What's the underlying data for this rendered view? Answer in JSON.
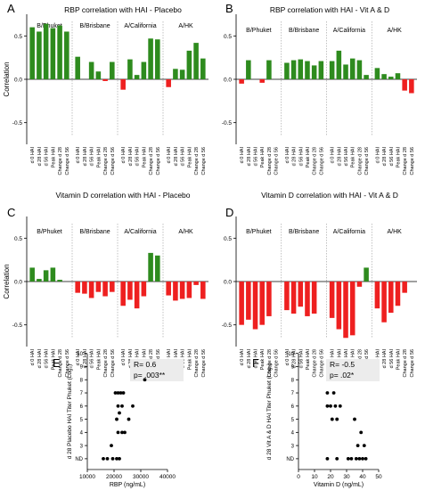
{
  "colors": {
    "positive": "#2e8b1e",
    "negative": "#ee2020",
    "divider": "#999999",
    "axis": "#000000"
  },
  "tick_labels": [
    "d 0 HAI",
    "d 28 HAI",
    "d 56 HAI",
    "Peak HAI",
    "Change d 28",
    "Change d 56"
  ],
  "chart_data": [
    {
      "type": "bar",
      "panel_letter": "A",
      "title": "RBP correlation with HAI - Placebo",
      "ylabel": "Correlation",
      "ylim": [
        -0.75,
        0.75
      ],
      "yticks": [
        0.5,
        0.0,
        -0.5
      ],
      "ytick_labels": [
        "0.5",
        "0.0",
        "-0.5"
      ],
      "groups": [
        "B/Phuket",
        "B/Brisbane",
        "A/California",
        "A/HK"
      ],
      "categories": [
        "d 0 HAI",
        "d 28 HAI",
        "d 56 HAI",
        "Peak HAI",
        "Change d 28",
        "Change d 56"
      ],
      "series": [
        {
          "group": "B/Phuket",
          "values": [
            0.6,
            0.55,
            0.64,
            0.59,
            0.62,
            0.55
          ]
        },
        {
          "group": "B/Brisbane",
          "values": [
            0.26,
            0.0,
            0.2,
            0.09,
            -0.02,
            0.2
          ]
        },
        {
          "group": "A/California",
          "values": [
            -0.12,
            0.23,
            0.05,
            0.2,
            0.47,
            0.46
          ]
        },
        {
          "group": "A/HK",
          "values": [
            -0.09,
            0.12,
            0.11,
            0.33,
            0.42,
            0.24
          ]
        }
      ]
    },
    {
      "type": "bar",
      "panel_letter": "B",
      "title": "RBP correlation with HAI - Vit A & D",
      "ylabel": "",
      "ylim": [
        -0.75,
        0.75
      ],
      "yticks": [
        0.5,
        0.0,
        -0.5
      ],
      "ytick_labels": [
        "0.5",
        "0.0",
        "-0.5"
      ],
      "groups": [
        "B/Phuket",
        "B/Brisbane",
        "A/California",
        "A/HK"
      ],
      "categories": [
        "d 0 HAI",
        "d 28 HAI",
        "d 56 HAI",
        "Peak HAI",
        "Change d 28",
        "Change d 56"
      ],
      "series": [
        {
          "group": "B/Phuket",
          "values": [
            -0.05,
            0.22,
            0.0,
            -0.04,
            0.22,
            0.0
          ]
        },
        {
          "group": "B/Brisbane",
          "values": [
            0.19,
            0.22,
            0.23,
            0.21,
            0.16,
            0.21
          ]
        },
        {
          "group": "A/California",
          "values": [
            0.21,
            0.33,
            0.17,
            0.24,
            0.22,
            0.05
          ]
        },
        {
          "group": "A/HK",
          "values": [
            0.13,
            0.06,
            0.03,
            0.07,
            -0.13,
            -0.16
          ]
        }
      ]
    },
    {
      "type": "bar",
      "panel_letter": "C",
      "title": "Vitamin D correlation with HAI - Placebo",
      "ylabel": "Correlation",
      "ylim": [
        -0.75,
        0.75
      ],
      "yticks": [
        0.5,
        0.0,
        -0.5
      ],
      "ytick_labels": [
        "0.5",
        "0.0",
        "-0.5"
      ],
      "groups": [
        "B/Phuket",
        "B/Brisbane",
        "A/California",
        "A/HK"
      ],
      "categories": [
        "d 0 HAI",
        "d 28 HAI",
        "d 56 HAI",
        "Peak HAI",
        "Change d 28",
        "Change d 56"
      ],
      "series": [
        {
          "group": "B/Phuket",
          "values": [
            0.16,
            0.03,
            0.13,
            0.16,
            0.02,
            0.0
          ]
        },
        {
          "group": "B/Brisbane",
          "values": [
            -0.13,
            -0.14,
            -0.19,
            -0.12,
            -0.17,
            -0.12
          ]
        },
        {
          "group": "A/California",
          "values": [
            -0.28,
            -0.21,
            -0.31,
            -0.17,
            0.33,
            0.3
          ]
        },
        {
          "group": "A/HK",
          "values": [
            -0.16,
            -0.22,
            -0.2,
            -0.19,
            -0.04,
            -0.2
          ]
        }
      ]
    },
    {
      "type": "bar",
      "panel_letter": "D",
      "title": "Vitamin D correlation with HAI - Vit A & D",
      "ylabel": "",
      "ylim": [
        -0.75,
        0.75
      ],
      "yticks": [
        0.5,
        0.0,
        -0.5
      ],
      "ytick_labels": [
        "0.5",
        "0.0",
        "-0.5"
      ],
      "groups": [
        "B/Phuket",
        "B/Brisbane",
        "A/California",
        "A/HK"
      ],
      "categories": [
        "d 0 HAI",
        "d 28 HAI",
        "d 56 HAI",
        "Peak HAI",
        "Change d 28",
        "Change d 56"
      ],
      "series": [
        {
          "group": "B/Phuket",
          "values": [
            -0.5,
            -0.44,
            -0.55,
            -0.5,
            -0.4,
            0.0
          ]
        },
        {
          "group": "B/Brisbane",
          "values": [
            -0.33,
            -0.37,
            -0.29,
            -0.4,
            -0.37,
            0.0
          ]
        },
        {
          "group": "A/California",
          "values": [
            -0.42,
            -0.55,
            -0.65,
            -0.62,
            -0.06,
            0.16
          ]
        },
        {
          "group": "A/HK",
          "values": [
            -0.31,
            -0.47,
            -0.36,
            -0.28,
            -0.13,
            0.0
          ]
        }
      ]
    },
    {
      "type": "scatter",
      "panel_letter": "E",
      "xlabel": "RBP (ng/mL)",
      "ylabel": "d 28 Placebo HAI Titer Phuket (Log₂)",
      "xlim": [
        10000,
        40000
      ],
      "xticks": [
        10000,
        20000,
        30000,
        40000
      ],
      "xtick_labels": [
        "10000",
        "20000",
        "30000",
        "40000"
      ],
      "ylim": [
        1.5,
        10.3
      ],
      "yticks": [
        2.32,
        3.32,
        4.32,
        5.32,
        6.32,
        7.32,
        8.32,
        9.32,
        10.32
      ],
      "ytick_labels": [
        "ND",
        "3",
        "4",
        "5",
        "6",
        "7",
        "8",
        "9",
        "10"
      ],
      "annotation": [
        "R= 0.6",
        "p= .003**"
      ],
      "points": [
        {
          "x": 16000,
          "y": 2.32
        },
        {
          "x": 17500,
          "y": 2.32
        },
        {
          "x": 19500,
          "y": 2.32
        },
        {
          "x": 21000,
          "y": 2.32
        },
        {
          "x": 22000,
          "y": 2.32
        },
        {
          "x": 19000,
          "y": 3.32
        },
        {
          "x": 21500,
          "y": 4.32
        },
        {
          "x": 23000,
          "y": 4.32
        },
        {
          "x": 24000,
          "y": 4.32
        },
        {
          "x": 21000,
          "y": 5.32
        },
        {
          "x": 25500,
          "y": 5.32
        },
        {
          "x": 22000,
          "y": 5.8
        },
        {
          "x": 21500,
          "y": 6.32
        },
        {
          "x": 23000,
          "y": 6.32
        },
        {
          "x": 27000,
          "y": 6.32
        },
        {
          "x": 20500,
          "y": 7.32
        },
        {
          "x": 21500,
          "y": 7.32
        },
        {
          "x": 22500,
          "y": 7.32
        },
        {
          "x": 23500,
          "y": 7.32
        },
        {
          "x": 31500,
          "y": 8.32
        }
      ]
    },
    {
      "type": "scatter",
      "panel_letter": "F",
      "xlabel": "Vitamin D (ng/mL)",
      "ylabel": "d 28 Vit A & D HAI Titer Phuket (Log₂)",
      "xlim": [
        0,
        50
      ],
      "xticks": [
        0,
        10,
        20,
        30,
        40,
        50
      ],
      "xtick_labels": [
        "0",
        "10",
        "20",
        "30",
        "40",
        "50"
      ],
      "ylim": [
        1.5,
        10.3
      ],
      "yticks": [
        2.32,
        3.32,
        4.32,
        5.32,
        6.32,
        7.32,
        8.32,
        9.32,
        10.32
      ],
      "ytick_labels": [
        "ND",
        "3",
        "4",
        "5",
        "6",
        "7",
        "8",
        "9",
        "10"
      ],
      "annotation": [
        "R= -0.5",
        "p= .02*"
      ],
      "points": [
        {
          "x": 18,
          "y": 7.32
        },
        {
          "x": 22,
          "y": 7.32
        },
        {
          "x": 18,
          "y": 6.32
        },
        {
          "x": 20,
          "y": 6.32
        },
        {
          "x": 23,
          "y": 6.32
        },
        {
          "x": 26,
          "y": 6.32
        },
        {
          "x": 21,
          "y": 5.32
        },
        {
          "x": 24,
          "y": 5.32
        },
        {
          "x": 35,
          "y": 5.32
        },
        {
          "x": 39,
          "y": 4.32
        },
        {
          "x": 37,
          "y": 3.32
        },
        {
          "x": 41,
          "y": 3.32
        },
        {
          "x": 18,
          "y": 2.32
        },
        {
          "x": 24,
          "y": 2.32
        },
        {
          "x": 31,
          "y": 2.32
        },
        {
          "x": 33,
          "y": 2.32
        },
        {
          "x": 36,
          "y": 2.32
        },
        {
          "x": 38,
          "y": 2.32
        },
        {
          "x": 40,
          "y": 2.32
        },
        {
          "x": 42,
          "y": 2.32
        }
      ]
    }
  ]
}
